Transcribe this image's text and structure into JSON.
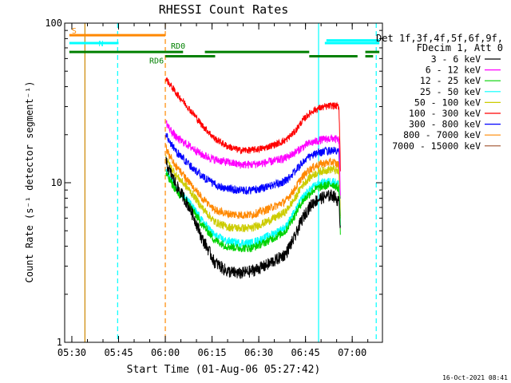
{
  "chart_data": {
    "type": "line",
    "title": "RHESSI Count Rates",
    "xlabel": "Start Time (01-Aug-06 05:27:42)",
    "ylabel": "Count Rate (s⁻¹ detector segment⁻¹)",
    "x_unit": "minutes after 05:27:42",
    "xlim": [
      0,
      102
    ],
    "ylim": [
      1,
      100
    ],
    "yscale": "log",
    "x_ticks": [
      {
        "x": 2.3,
        "label": "05:30"
      },
      {
        "x": 17.3,
        "label": "05:45"
      },
      {
        "x": 32.3,
        "label": "06:00"
      },
      {
        "x": 47.3,
        "label": "06:15"
      },
      {
        "x": 62.3,
        "label": "06:30"
      },
      {
        "x": 77.3,
        "label": "06:45"
      },
      {
        "x": 92.3,
        "label": "07:00"
      }
    ],
    "y_ticks": [
      {
        "y": 1,
        "label": "1"
      },
      {
        "y": 10,
        "label": "10"
      },
      {
        "y": 100,
        "label": "100"
      }
    ],
    "legend_header": [
      "Det 1f,3f,4f,5f,6f,9f,",
      "FDecim 1, Att 0"
    ],
    "legend_position": "right",
    "data_window": [
      32.5,
      88.5
    ],
    "profile_minutes": [
      32.5,
      33.5,
      36,
      40,
      44,
      48,
      52,
      56,
      60,
      64,
      68,
      71,
      74,
      76,
      78,
      80,
      82,
      84,
      86,
      88,
      88.5
    ],
    "series": [
      {
        "name": "3 - 6 keV",
        "color": "#000000",
        "values": [
          13.5,
          12,
          9.5,
          7,
          4.5,
          3.2,
          2.8,
          2.7,
          2.8,
          3.0,
          3.3,
          3.6,
          4.6,
          5.8,
          6.8,
          7.6,
          8.0,
          8.2,
          8.4,
          7.6,
          5.2
        ]
      },
      {
        "name": "6 - 12 keV",
        "color": "#ff00ff",
        "values": [
          24,
          22,
          19,
          17,
          15,
          14,
          13.5,
          13,
          13,
          13.3,
          13.8,
          14.3,
          15.5,
          16.5,
          17.5,
          18,
          18.5,
          18.8,
          19,
          18.5,
          8
        ]
      },
      {
        "name": "12 - 25 keV",
        "color": "#00d200",
        "values": [
          11.5,
          10.5,
          8.8,
          7.2,
          5.5,
          4.4,
          4.0,
          3.9,
          3.9,
          4.2,
          4.6,
          5.0,
          6.3,
          7.5,
          8.3,
          9.0,
          9.4,
          9.6,
          9.8,
          9.2,
          5
        ]
      },
      {
        "name": "25 - 50 keV",
        "color": "#00ffff",
        "values": [
          12,
          11,
          9.2,
          7.5,
          5.8,
          4.7,
          4.3,
          4.2,
          4.2,
          4.5,
          4.9,
          5.3,
          6.6,
          7.9,
          8.8,
          9.5,
          9.9,
          10.1,
          10.3,
          9.8,
          5.3
        ]
      },
      {
        "name": "50 - 100 keV",
        "color": "#cccc00",
        "values": [
          14.5,
          13,
          11,
          9,
          7,
          5.7,
          5.3,
          5.2,
          5.2,
          5.6,
          6.1,
          6.6,
          8.0,
          9.5,
          10.5,
          11.3,
          11.8,
          12,
          12.2,
          11.6,
          6
        ]
      },
      {
        "name": "100 - 300 keV",
        "color": "#ff0000",
        "values": [
          45,
          42,
          36,
          29,
          23,
          19,
          17,
          16,
          16,
          16.5,
          17.5,
          18.5,
          21,
          24,
          26.5,
          28.5,
          29.5,
          30,
          30.5,
          30,
          12
        ]
      },
      {
        "name": "300 - 800 keV",
        "color": "#0000ff",
        "values": [
          20,
          18.5,
          15.5,
          13,
          11,
          9.8,
          9.2,
          9.0,
          9.0,
          9.3,
          9.8,
          10.3,
          11.8,
          13.2,
          14.3,
          15,
          15.5,
          15.8,
          16,
          15.5,
          7.5
        ]
      },
      {
        "name": "800 - 7000 keV",
        "color": "#ff8800",
        "values": [
          16.5,
          15,
          12.5,
          10,
          8,
          6.8,
          6.4,
          6.3,
          6.3,
          6.7,
          7.2,
          7.7,
          9.2,
          10.7,
          11.8,
          12.6,
          13.1,
          13.3,
          13.5,
          12.9,
          6.2
        ]
      },
      {
        "name": "7000 - 15000 keV",
        "color": "#a0522d",
        "values": []
      }
    ],
    "annotations": {
      "flags": [
        {
          "label": "S",
          "color": "#ff8800",
          "y": 84,
          "segments": [
            [
              1.5,
              32.3
            ]
          ]
        },
        {
          "label": "N",
          "color": "#00ffff",
          "y": 75,
          "segments": [
            [
              1.5,
              17.3
            ],
            [
              83.5,
              101
            ]
          ]
        },
        {
          "label": "RD0",
          "color": "#008000",
          "y": 66,
          "segments": [
            [
              32.3,
              38
            ],
            [
              45,
              78.5
            ]
          ]
        },
        {
          "label": "RD6",
          "color": "#008000",
          "y": 62,
          "segments": [
            [
              32.3,
              48.3
            ],
            [
              78.5,
              94
            ],
            [
              96.5,
              99
            ]
          ]
        },
        {
          "label": "",
          "color": "#008000",
          "y": 66,
          "segments": [
            [
              1.5,
              32.3
            ],
            [
              96.5,
              101
            ]
          ]
        },
        {
          "label": "",
          "color": "#00ffff",
          "y": 78,
          "segments": [
            [
              84,
              101
            ]
          ]
        }
      ],
      "vlines": [
        {
          "x": 6.5,
          "color": "#cc8800",
          "style": "solid"
        },
        {
          "x": 17.0,
          "color": "#00ffff",
          "style": "dashed"
        },
        {
          "x": 32.3,
          "color": "#ff8800",
          "style": "dashed"
        },
        {
          "x": 81.5,
          "color": "#00ffff",
          "style": "solid"
        },
        {
          "x": 100.0,
          "color": "#00ffff",
          "style": "dashed"
        }
      ]
    },
    "timestamp": "16-Oct-2021 08:41"
  }
}
